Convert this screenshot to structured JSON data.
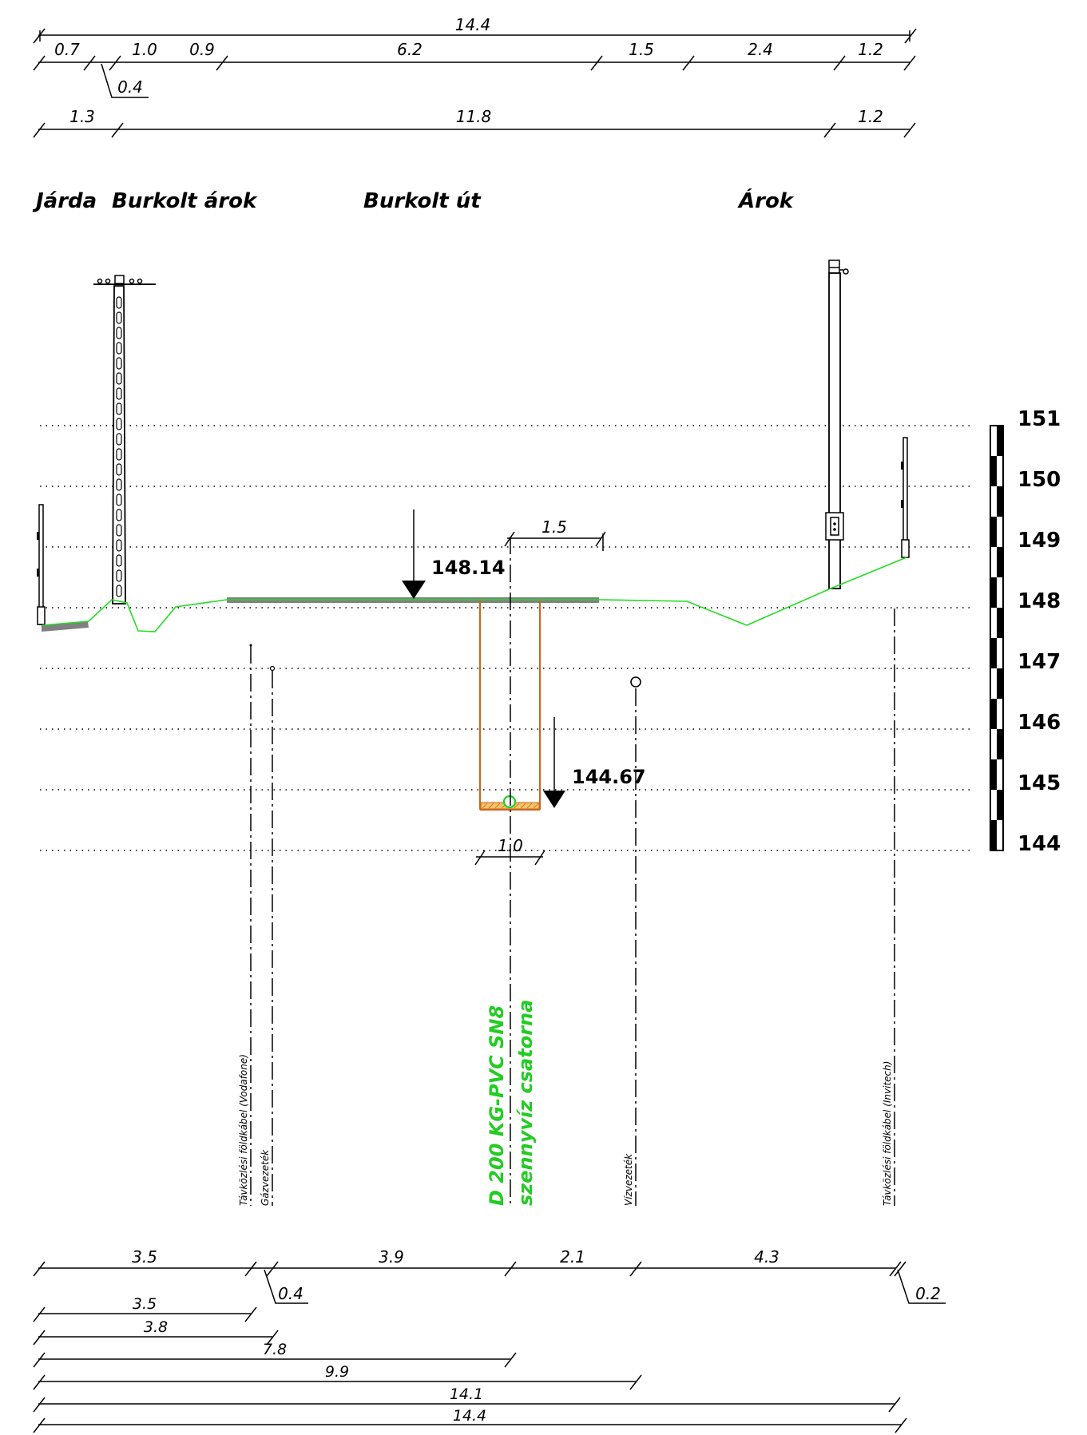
{
  "colors": {
    "ground": "#22dd22",
    "pavement": "#808080",
    "trench": "#c8651e",
    "pipe_label": "#22cc22",
    "ink": "#000000"
  },
  "top_dimensions": {
    "overall": "14.4",
    "row1": [
      "0.7",
      "1.0",
      "0.9",
      "6.2",
      "1.5",
      "2.4",
      "1.2"
    ],
    "row1_leader": "0.4",
    "row2": [
      "1.3",
      "11.8",
      "1.2"
    ]
  },
  "zones": {
    "jarda": "Járda",
    "burkolt_arok": "Burkolt árok",
    "burkolt_ut": "Burkolt út",
    "arok": "Árok"
  },
  "elevations": {
    "road": "148.14",
    "pipe": "144.67"
  },
  "trench_dims": {
    "offset": "1.5",
    "width": "1.0"
  },
  "scale_labels": [
    "151",
    "150",
    "149",
    "148",
    "147",
    "146",
    "145",
    "144"
  ],
  "utilities": {
    "vodafone": "Távközlési földkábel (Vodafone)",
    "gas": "Gázvezeték",
    "pipe_line1": "D 200 KG-PVC SN8",
    "pipe_line2": "szennyvíz csatorna",
    "water": "Vízvezeték",
    "invitech": "Távközlési földkábel (Invitech)"
  },
  "bottom_dimensions": {
    "row1": [
      "3.5",
      "3.9",
      "2.1",
      "4.3"
    ],
    "leader_a": "0.4",
    "leader_b": "0.2",
    "cumulative": [
      "3.5",
      "3.8",
      "7.8",
      "9.9",
      "14.1",
      "14.4"
    ]
  }
}
